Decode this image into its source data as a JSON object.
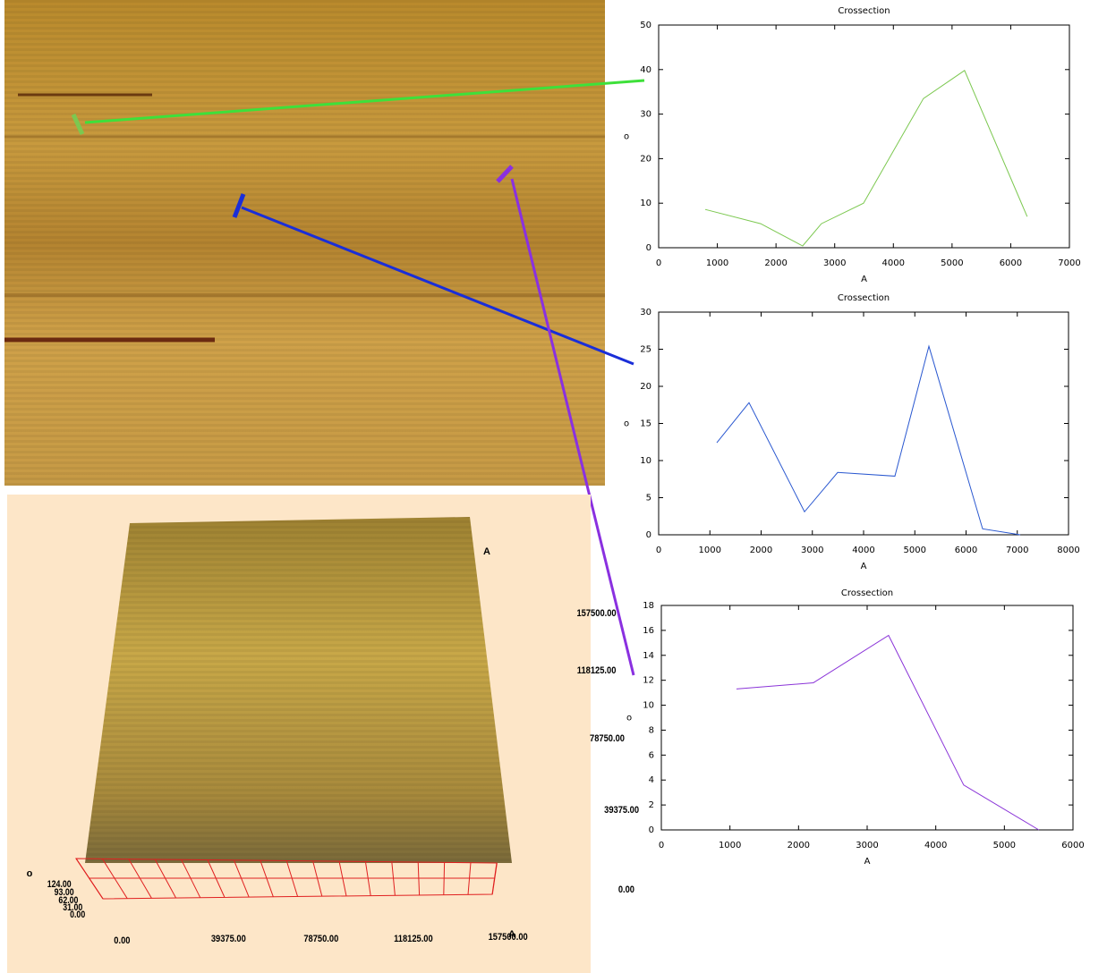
{
  "chart_data": [
    {
      "type": "line",
      "title": "Crossection",
      "xlabel": "A",
      "ylabel": "o",
      "color": "#7cc850",
      "x": [
        793,
        1738,
        2454,
        2774,
        3491,
        4512,
        5213,
        6280
      ],
      "values": [
        8.6,
        5.4,
        0.4,
        5.4,
        10,
        33.5,
        39.8,
        7
      ],
      "xlim": [
        0,
        7000
      ],
      "xticks": [
        0,
        1000,
        2000,
        3000,
        4000,
        5000,
        6000,
        7000
      ],
      "ylim": [
        0,
        50
      ],
      "yticks": [
        0,
        10,
        20,
        30,
        40,
        50
      ]
    },
    {
      "type": "line",
      "title": "Crossection",
      "xlabel": "A",
      "ylabel": "o",
      "color": "#2a58d0",
      "x": [
        1135,
        1764,
        2847,
        3494,
        4611,
        5275,
        6323,
        7057
      ],
      "values": [
        12.4,
        17.8,
        3.1,
        8.4,
        7.9,
        25.4,
        0.8,
        0
      ],
      "xlim": [
        0,
        8000
      ],
      "xticks": [
        0,
        1000,
        2000,
        3000,
        4000,
        5000,
        6000,
        7000,
        8000
      ],
      "ylim": [
        0,
        30
      ],
      "yticks": [
        0,
        5,
        10,
        15,
        20,
        25,
        30
      ]
    },
    {
      "type": "line",
      "title": "Crossection",
      "xlabel": "A",
      "ylabel": "o",
      "color": "#8a34d8",
      "x": [
        1095,
        2216,
        3312,
        4407,
        5502
      ],
      "values": [
        11.3,
        11.8,
        15.6,
        3.6,
        0
      ],
      "xlim": [
        0,
        6000
      ],
      "xticks": [
        0,
        1000,
        2000,
        3000,
        4000,
        5000,
        6000
      ],
      "ylim": [
        0,
        18
      ],
      "yticks": [
        0,
        2,
        4,
        6,
        8,
        10,
        12,
        14,
        16,
        18
      ]
    }
  ],
  "surface_3d": {
    "y_unit": "A",
    "y_labels": [
      "157500.00",
      "118125.00",
      "78750.00",
      "39375.00",
      "0.00"
    ],
    "x_unit": "A",
    "x_labels": [
      "0.00",
      "39375.00",
      "78750.00",
      "118125.00",
      "157500.00"
    ],
    "z_unit": "o",
    "z_labels": [
      "124.00",
      "93.00",
      "62.00",
      "31.00",
      "0.00"
    ]
  }
}
